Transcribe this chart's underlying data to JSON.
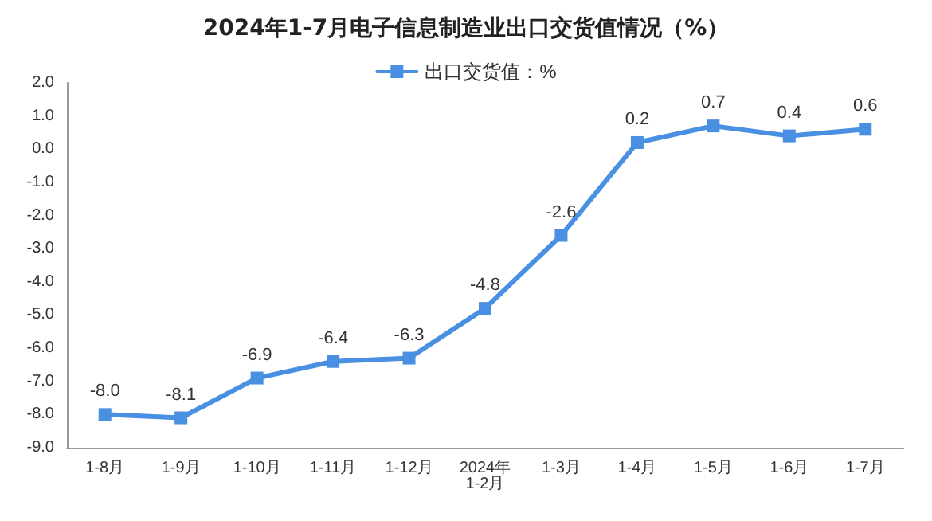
{
  "chart_data": {
    "type": "line",
    "title": "2024年1-7月电子信息制造业出口交货值情况（%）",
    "categories": [
      "1-8月",
      "1-9月",
      "1-10月",
      "1-11月",
      "1-12月",
      "2024年\n1-2月",
      "1-3月",
      "1-4月",
      "1-5月",
      "1-6月",
      "1-7月"
    ],
    "series": [
      {
        "name": "出口交货值：%",
        "color": "#4a90e2",
        "values": [
          -8.0,
          -8.1,
          -6.9,
          -6.4,
          -6.3,
          -4.8,
          -2.6,
          0.2,
          0.7,
          0.4,
          0.6
        ],
        "value_labels": [
          "-8.0",
          "-8.1",
          "-6.9",
          "-6.4",
          "-6.3",
          "-4.8",
          "-2.6",
          "0.2",
          "0.7",
          "0.4",
          "0.6"
        ]
      }
    ],
    "ylim": [
      -9,
      2
    ],
    "yticks": [
      {
        "value": -9,
        "label": "-9.0"
      },
      {
        "value": -8,
        "label": "-8.0"
      },
      {
        "value": -7,
        "label": "-7.0"
      },
      {
        "value": -6,
        "label": "-6.0"
      },
      {
        "value": -5,
        "label": "-5.0"
      },
      {
        "value": -4,
        "label": "-4.0"
      },
      {
        "value": -3,
        "label": "-3.0"
      },
      {
        "value": -2,
        "label": "-2.0"
      },
      {
        "value": -1,
        "label": "-1.0"
      },
      {
        "value": 0,
        "label": "0.0"
      },
      {
        "value": 1,
        "label": "1.0"
      },
      {
        "value": 2,
        "label": "2.0"
      }
    ],
    "grid": false,
    "legend": "top",
    "marker": "square",
    "line_style": "solid"
  }
}
